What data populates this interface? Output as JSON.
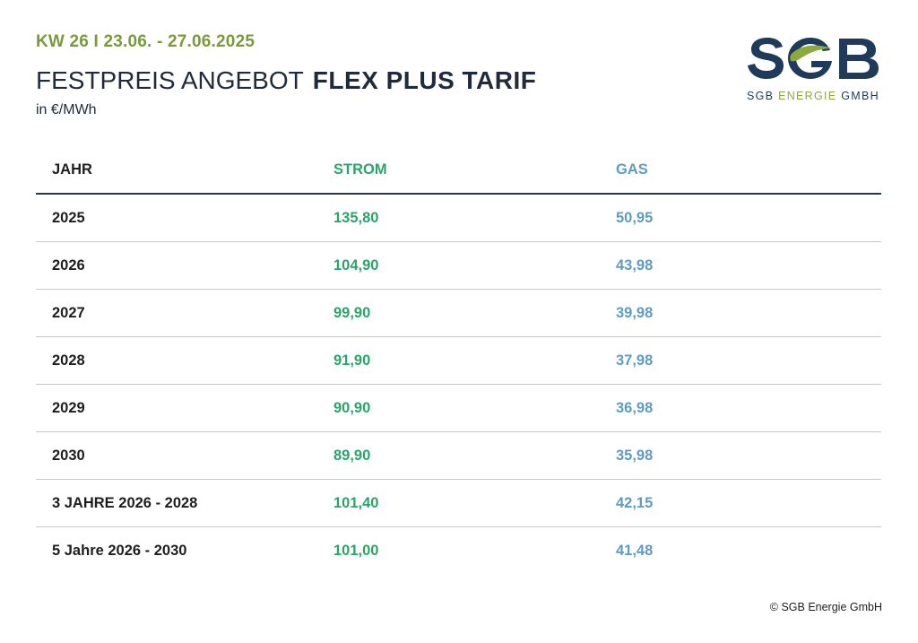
{
  "header": {
    "week": "KW 26 I 23.06. - 27.06.2025",
    "title_light": "FESTPREIS ANGEBOT",
    "title_bold": "FLEX PLUS TARIF",
    "unit": "in €/MWh"
  },
  "logo": {
    "wordmark": "SGB",
    "sub_prefix": "SGB ",
    "sub_green": "ENERGIE",
    "sub_suffix": " GMBH",
    "colors": {
      "navy": "#1f3a5a",
      "green": "#8aab3c"
    }
  },
  "table": {
    "columns": [
      "JAHR",
      "STROM",
      "GAS"
    ],
    "rows": [
      [
        "2025",
        "135,80",
        "50,95"
      ],
      [
        "2026",
        "104,90",
        "43,98"
      ],
      [
        "2027",
        "99,90",
        "39,98"
      ],
      [
        "2028",
        "91,90",
        "37,98"
      ],
      [
        "2029",
        "90,90",
        "36,98"
      ],
      [
        "2030",
        "89,90",
        "35,98"
      ],
      [
        "3 JAHRE 2026 - 2028",
        "101,40",
        "42,15"
      ],
      [
        "5 Jahre 2026 - 2030",
        "101,00",
        "41,48"
      ]
    ],
    "colors": {
      "strom": "#2aa56a",
      "gas": "#5e9cc4"
    }
  },
  "footer": {
    "copyright": "© SGB Energie GmbH"
  }
}
